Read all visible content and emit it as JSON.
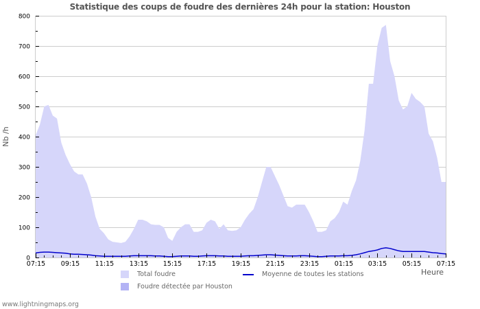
{
  "title": "Statistique des coups de foudre des dernières 24h pour la station: Houston",
  "footer": "www.lightningmaps.org",
  "legend": {
    "total": "Total foudre",
    "detected": "Foudre détectée par Houston",
    "average": "Moyenne de toutes les stations"
  },
  "axes": {
    "xlabel": "Heure",
    "ylabel": "Nb /h"
  },
  "colors": {
    "total_fill": "#d6d6fa",
    "detected_fill": "#b3b3f5",
    "average_line": "#0000cc",
    "grid": "#cccccc"
  },
  "chart_data": {
    "type": "area",
    "title": "Statistique des coups de foudre des dernières 24h pour la station: Houston",
    "xlabel": "Heure",
    "ylabel": "Nb /h",
    "ylim": [
      0,
      800
    ],
    "yticks": [
      0,
      100,
      200,
      300,
      400,
      500,
      600,
      700,
      800
    ],
    "xticks": [
      "07:15",
      "09:15",
      "11:15",
      "13:15",
      "15:15",
      "17:15",
      "19:15",
      "21:15",
      "23:15",
      "01:15",
      "03:15",
      "05:15",
      "07:15"
    ],
    "grid": true,
    "legend_position": "bottom",
    "x_hours": [
      0,
      0.25,
      0.5,
      0.75,
      1,
      1.25,
      1.5,
      1.75,
      2,
      2.25,
      2.5,
      2.75,
      3,
      3.25,
      3.5,
      3.75,
      4,
      4.25,
      4.5,
      4.75,
      5,
      5.25,
      5.5,
      5.75,
      6,
      6.25,
      6.5,
      6.75,
      7,
      7.25,
      7.5,
      7.75,
      8,
      8.25,
      8.5,
      8.75,
      9,
      9.25,
      9.5,
      9.75,
      10,
      10.25,
      10.5,
      10.75,
      11,
      11.25,
      11.5,
      11.75,
      12,
      12.25,
      12.5,
      12.75,
      13,
      13.25,
      13.5,
      13.75,
      14,
      14.25,
      14.5,
      14.75,
      15,
      15.25,
      15.5,
      15.75,
      16,
      16.25,
      16.5,
      16.75,
      17,
      17.25,
      17.5,
      17.75,
      18,
      18.25,
      18.5,
      18.75,
      19,
      19.25,
      19.5,
      19.75,
      20,
      20.25,
      20.5,
      20.75,
      21,
      21.25,
      21.5,
      21.75,
      22,
      22.25,
      22.5,
      22.75,
      23,
      23.25,
      23.5,
      23.75,
      24
    ],
    "series": [
      {
        "name": "Total foudre",
        "values": [
          405,
          440,
          500,
          505,
          470,
          460,
          380,
          340,
          310,
          285,
          275,
          275,
          245,
          200,
          135,
          95,
          80,
          60,
          52,
          50,
          48,
          52,
          70,
          95,
          125,
          125,
          120,
          110,
          108,
          108,
          100,
          65,
          55,
          85,
          100,
          110,
          110,
          85,
          85,
          90,
          115,
          125,
          120,
          95,
          110,
          90,
          88,
          90,
          100,
          125,
          145,
          160,
          200,
          250,
          300,
          300,
          270,
          240,
          205,
          170,
          165,
          175,
          175,
          175,
          150,
          120,
          85,
          85,
          90,
          120,
          130,
          150,
          185,
          175,
          220,
          255,
          320,
          420,
          575,
          575,
          700,
          760,
          770,
          650,
          600,
          520,
          490,
          500,
          545,
          525,
          515,
          500,
          410,
          385,
          330,
          250,
          250
        ]
      },
      {
        "name": "Foudre détectée par Houston",
        "values": []
      },
      {
        "name": "Moyenne de toutes les stations",
        "values": [
          15,
          17,
          18,
          18,
          17,
          16,
          15,
          14,
          12,
          11,
          11,
          10,
          9,
          8,
          6,
          5,
          4,
          4,
          4,
          4,
          4,
          4,
          5,
          6,
          6,
          6,
          6,
          6,
          5,
          5,
          4,
          3,
          3,
          4,
          5,
          5,
          5,
          4,
          4,
          5,
          6,
          6,
          6,
          5,
          5,
          4,
          4,
          4,
          4,
          5,
          6,
          6,
          7,
          8,
          9,
          9,
          8,
          7,
          6,
          5,
          5,
          5,
          6,
          6,
          5,
          4,
          3,
          3,
          4,
          5,
          5,
          5,
          6,
          6,
          7,
          9,
          12,
          16,
          20,
          22,
          25,
          30,
          32,
          30,
          26,
          22,
          20,
          20,
          20,
          20,
          20,
          20,
          18,
          16,
          15,
          13,
          12
        ]
      }
    ]
  }
}
